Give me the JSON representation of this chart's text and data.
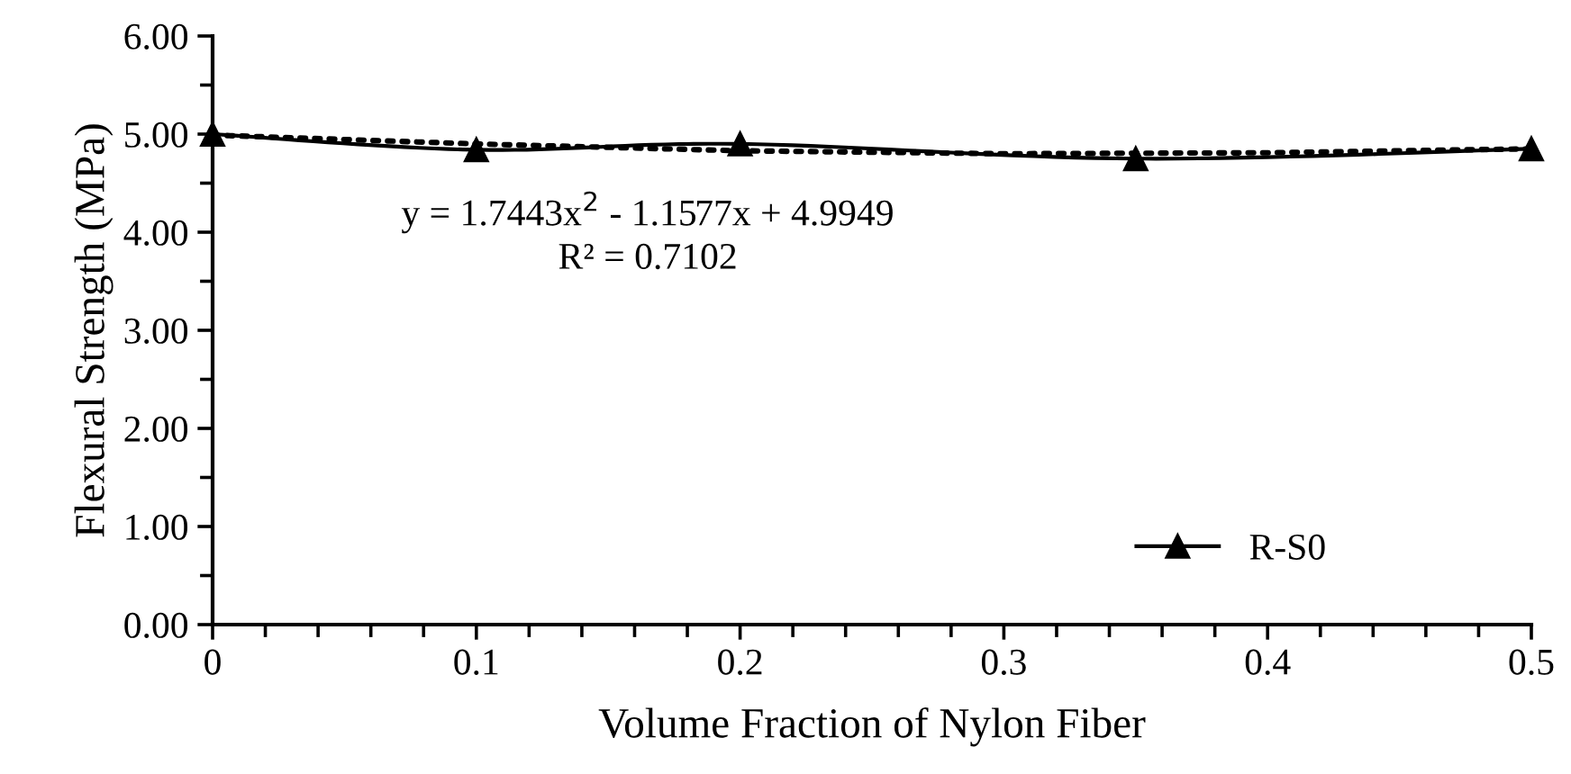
{
  "chart_data": {
    "type": "line",
    "xlabel": "Volume Fraction of Nylon Fiber",
    "ylabel": "Flexural Strength (MPa)",
    "xlim": [
      0,
      0.5
    ],
    "xticks": [
      0,
      0.1,
      0.2,
      0.3,
      0.4,
      0.5
    ],
    "ylim": [
      0,
      6
    ],
    "yticks": [
      {
        "value": 0,
        "label": "0.00"
      },
      {
        "value": 1,
        "label": "1.00"
      },
      {
        "value": 2,
        "label": "2.00"
      },
      {
        "value": 3,
        "label": "3.00"
      },
      {
        "value": 4,
        "label": "4.00"
      },
      {
        "value": 5,
        "label": "5.00"
      },
      {
        "value": 6,
        "label": "6.00"
      }
    ],
    "series": [
      {
        "name": "R-S0",
        "color": "#000000",
        "x": [
          0,
          0.1,
          0.2,
          0.35,
          0.5
        ],
        "values": [
          5.0,
          4.84,
          4.9,
          4.75,
          4.85
        ],
        "marker": "triangle",
        "line_style": "solid"
      },
      {
        "type": "line",
        "color": "#000000",
        "x": [
          0,
          0.1,
          0.2,
          0.3,
          0.4,
          0.5
        ],
        "values": [
          4.99,
          4.9,
          4.83,
          4.8,
          4.81,
          4.85
        ],
        "marker": "none",
        "line_style": "dotted"
      }
    ],
    "legend": "bottom right",
    "grid": false,
    "annotations": [
      "y = 1.7443x$^{2}$ - 1.1577x + 4.9949",
      "R² = 0.7102"
    ]
  }
}
